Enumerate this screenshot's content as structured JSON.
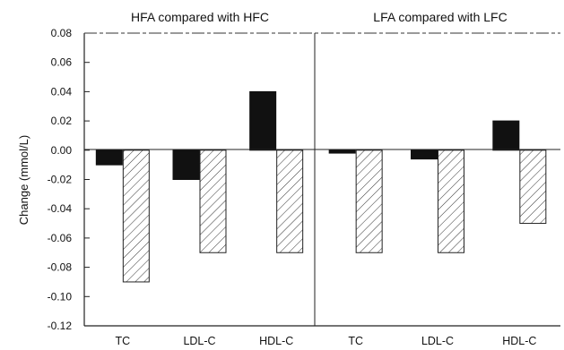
{
  "chart_data": {
    "type": "bar",
    "ylabel": "Change (mmol/L)",
    "ylim": [
      -0.12,
      0.08
    ],
    "yticks": [
      "0.08",
      "0.06",
      "0.04",
      "0.02",
      "0.00",
      "-0.02",
      "-0.04",
      "-0.06",
      "-0.08",
      "-0.10",
      "-0.12"
    ],
    "grid": false,
    "panels": [
      {
        "title": "HFA compared with HFC",
        "categories": [
          "TC",
          "LDL-C",
          "HDL-C"
        ],
        "series": [
          {
            "style": "solid",
            "values": [
              -0.01,
              -0.02,
              0.04
            ]
          },
          {
            "style": "hatched",
            "values": [
              -0.09,
              -0.07,
              -0.07
            ]
          }
        ]
      },
      {
        "title": "LFA compared with LFC",
        "categories": [
          "TC",
          "LDL-C",
          "HDL-C"
        ],
        "series": [
          {
            "style": "solid",
            "values": [
              -0.002,
              -0.006,
              0.02
            ]
          },
          {
            "style": "hatched",
            "values": [
              -0.07,
              -0.07,
              -0.05
            ]
          }
        ]
      }
    ],
    "colors": {
      "solid": "#111111",
      "hatch_line": "#333333",
      "axis": "#222222"
    }
  }
}
